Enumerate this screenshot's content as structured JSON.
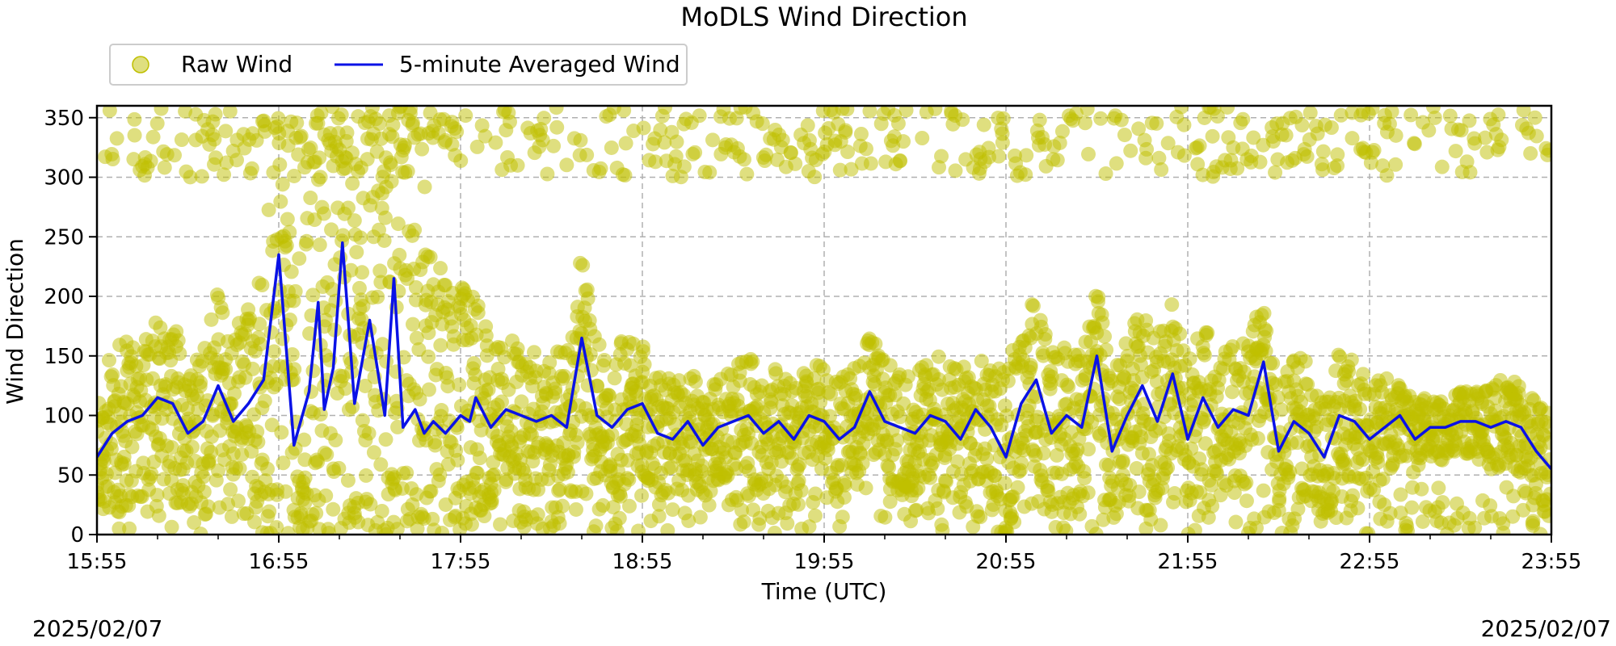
{
  "chart_data": {
    "type": "scatter",
    "title": "MoDLS Wind Direction",
    "xlabel": "Time (UTC)",
    "ylabel": "Wind Direction",
    "xlim": [
      "15:55",
      "23:55"
    ],
    "ylim": [
      0,
      360
    ],
    "x_ticks": [
      "15:55",
      "16:55",
      "17:55",
      "18:55",
      "19:55",
      "20:55",
      "21:55",
      "22:55",
      "23:55"
    ],
    "y_ticks": [
      0,
      50,
      100,
      150,
      200,
      250,
      300,
      350
    ],
    "grid": true,
    "legend_placement": "top-left (above plot)",
    "date_left": "2025/02/07",
    "date_right": "2025/02/07",
    "series": [
      {
        "name": "Raw Wind",
        "kind": "scatter",
        "color": "#bfbf00",
        "note": "dense raw samples; spans 0–360 around the averaged line",
        "envelope": {
          "x": [
            "15:55",
            "16:05",
            "16:15",
            "16:25",
            "16:35",
            "16:45",
            "16:55",
            "17:05",
            "17:15",
            "17:25",
            "17:35",
            "17:45",
            "17:55",
            "18:05",
            "18:15",
            "18:25",
            "18:35",
            "18:45",
            "18:55",
            "19:05",
            "19:15",
            "19:25",
            "19:35",
            "19:45",
            "19:55",
            "20:05",
            "20:15",
            "20:25",
            "20:35",
            "20:45",
            "20:55",
            "21:05",
            "21:15",
            "21:25",
            "21:35",
            "21:45",
            "21:55",
            "22:05",
            "22:15",
            "22:25",
            "22:35",
            "22:45",
            "22:55",
            "23:05",
            "23:15",
            "23:25",
            "23:35",
            "23:45",
            "23:55"
          ],
          "spread": [
            60,
            75,
            70,
            65,
            80,
            85,
            120,
            170,
            160,
            180,
            170,
            150,
            120,
            70,
            60,
            55,
            70,
            65,
            60,
            50,
            45,
            50,
            55,
            50,
            45,
            55,
            50,
            50,
            60,
            55,
            70,
            75,
            65,
            60,
            65,
            70,
            65,
            60,
            60,
            55,
            60,
            55,
            50,
            35,
            30,
            25,
            35,
            40,
            45
          ]
        }
      },
      {
        "name": "5-minute Averaged Wind",
        "kind": "line",
        "color": "#0a12e6",
        "x": [
          "15:55",
          "16:00",
          "16:05",
          "16:10",
          "16:15",
          "16:20",
          "16:25",
          "16:30",
          "16:35",
          "16:40",
          "16:45",
          "16:50",
          "16:55",
          "17:00",
          "17:05",
          "17:08",
          "17:10",
          "17:13",
          "17:16",
          "17:20",
          "17:25",
          "17:30",
          "17:33",
          "17:36",
          "17:40",
          "17:43",
          "17:46",
          "17:50",
          "17:55",
          "17:58",
          "18:00",
          "18:05",
          "18:10",
          "18:15",
          "18:20",
          "18:25",
          "18:30",
          "18:35",
          "18:40",
          "18:45",
          "18:50",
          "18:55",
          "19:00",
          "19:05",
          "19:10",
          "19:15",
          "19:20",
          "19:25",
          "19:30",
          "19:35",
          "19:40",
          "19:45",
          "19:50",
          "19:55",
          "20:00",
          "20:05",
          "20:10",
          "20:15",
          "20:20",
          "20:25",
          "20:30",
          "20:35",
          "20:40",
          "20:45",
          "20:50",
          "20:55",
          "21:00",
          "21:05",
          "21:10",
          "21:15",
          "21:20",
          "21:25",
          "21:30",
          "21:35",
          "21:40",
          "21:45",
          "21:50",
          "21:55",
          "22:00",
          "22:05",
          "22:10",
          "22:15",
          "22:20",
          "22:25",
          "22:30",
          "22:35",
          "22:40",
          "22:45",
          "22:50",
          "22:55",
          "23:00",
          "23:05",
          "23:10",
          "23:15",
          "23:20",
          "23:25",
          "23:30",
          "23:35",
          "23:40",
          "23:45",
          "23:50",
          "23:55"
        ],
        "values": [
          65,
          85,
          95,
          100,
          115,
          110,
          85,
          95,
          125,
          95,
          110,
          130,
          235,
          75,
          120,
          195,
          105,
          140,
          245,
          110,
          180,
          100,
          215,
          90,
          105,
          85,
          95,
          85,
          100,
          95,
          115,
          90,
          105,
          100,
          95,
          100,
          90,
          165,
          100,
          90,
          105,
          110,
          85,
          80,
          95,
          75,
          90,
          95,
          100,
          85,
          95,
          80,
          100,
          95,
          80,
          90,
          120,
          95,
          90,
          85,
          100,
          95,
          80,
          105,
          90,
          65,
          110,
          130,
          85,
          100,
          90,
          150,
          70,
          100,
          125,
          95,
          135,
          80,
          115,
          90,
          105,
          100,
          145,
          70,
          95,
          85,
          65,
          100,
          95,
          80,
          90,
          100,
          80,
          90,
          90,
          95,
          95,
          90,
          95,
          90,
          70,
          55
        ]
      }
    ]
  }
}
